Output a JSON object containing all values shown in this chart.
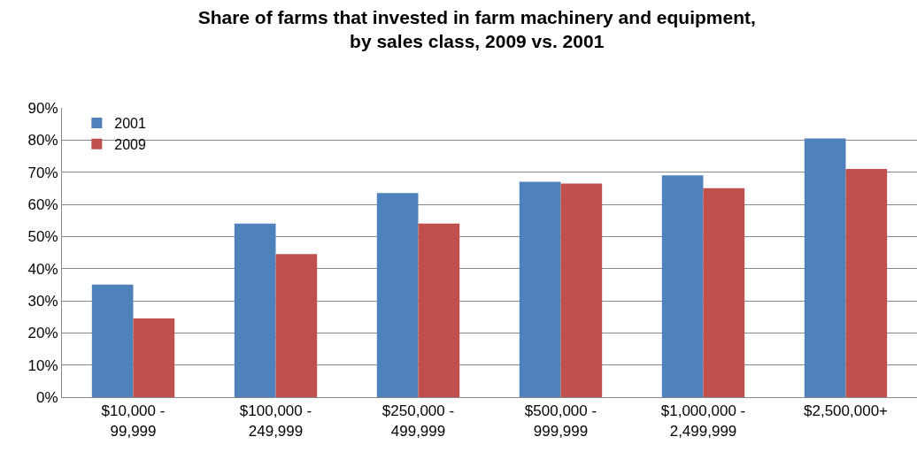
{
  "chart_data": {
    "type": "bar",
    "title": "Share of farms that invested in farm machinery and equipment,\nby sales class, 2009 vs. 2001",
    "categories": [
      "$10,000 -\n99,999",
      "$100,000 -\n249,999",
      "$250,000 -\n499,999",
      "$500,000 -\n999,999",
      "$1,000,000 -\n2,499,999",
      "$2,500,000+"
    ],
    "series": [
      {
        "name": "2001",
        "color": "#4f81bd",
        "values": [
          35,
          54,
          63.5,
          67,
          69,
          80.5
        ]
      },
      {
        "name": "2009",
        "color": "#c0504d",
        "values": [
          24.5,
          44.5,
          54,
          66.5,
          65,
          71
        ]
      }
    ],
    "ylim": [
      0,
      90
    ],
    "yticks": [
      {
        "value": 0,
        "label": "0%"
      },
      {
        "value": 10,
        "label": "10%"
      },
      {
        "value": 20,
        "label": "20%"
      },
      {
        "value": 30,
        "label": "30%"
      },
      {
        "value": 40,
        "label": "40%"
      },
      {
        "value": 50,
        "label": "50%"
      },
      {
        "value": 60,
        "label": "60%"
      },
      {
        "value": 70,
        "label": "70%"
      },
      {
        "value": 80,
        "label": "80%"
      },
      {
        "value": 90,
        "label": "90%"
      }
    ],
    "grid": "y",
    "legend": "top left"
  }
}
